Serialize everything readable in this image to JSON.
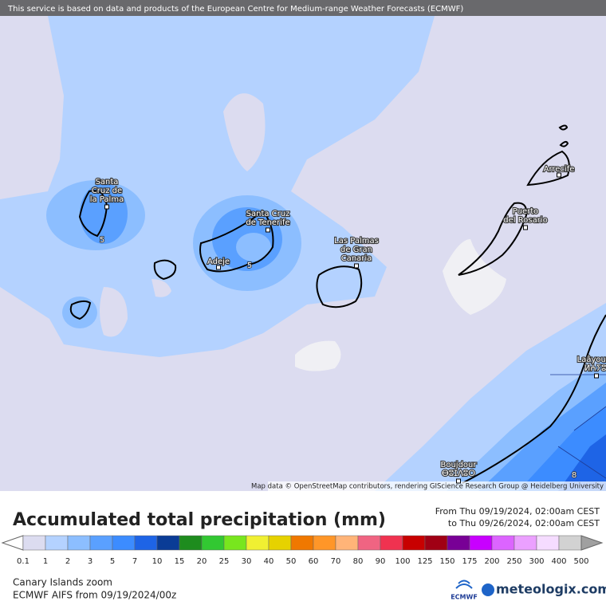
{
  "header": {
    "notice": "This service is based on data and products of the European Centre for Medium-range Weather Forecasts (ECMWF)"
  },
  "map": {
    "places": [
      {
        "lines": [
          "Santa",
          "Cruz de",
          "la Palma"
        ]
      },
      {
        "lines": [
          "Santa Cruz",
          "de Tenerife"
        ]
      },
      {
        "lines": [
          "Adeje"
        ]
      },
      {
        "lines": [
          "Las Palmas",
          "de Gran",
          "Canaria"
        ]
      },
      {
        "lines": [
          "Puerto",
          "del Rosario"
        ]
      },
      {
        "lines": [
          "Arrecife"
        ]
      },
      {
        "lines": [
          "Laâyoune",
          "ⵍⵄⵢⵓⵏ"
        ]
      },
      {
        "lines": [
          "Boujdour",
          "ⴱⵓⵊⴷⵓⵔ"
        ]
      }
    ],
    "contour_labels": [
      "5",
      "5",
      "8"
    ],
    "attribution": "Map data © OpenStreetMap contributors, rendering GIScience Research Group @ Heidelberg University"
  },
  "legend": {
    "title": "Accumulated total precipitation (mm)",
    "period": [
      "From Thu 09/19/2024, 02:00am CEST",
      "to Thu 09/26/2024, 02:00am CEST"
    ],
    "labels": [
      "0.1",
      "1",
      "2",
      "3",
      "5",
      "7",
      "10",
      "15",
      "20",
      "25",
      "30",
      "40",
      "50",
      "60",
      "70",
      "80",
      "90",
      "100",
      "125",
      "150",
      "175",
      "200",
      "250",
      "300",
      "400",
      "500"
    ],
    "colors": [
      "#dcdcf0",
      "#b4d2ff",
      "#8cbeff",
      "#5aa0ff",
      "#3c8cff",
      "#1e64e6",
      "#0a3c96",
      "#1e8c1e",
      "#32c832",
      "#78e61e",
      "#f0f032",
      "#e6d200",
      "#f07800",
      "#ff9628",
      "#ffb478",
      "#f06482",
      "#f03250",
      "#c80000",
      "#a00014",
      "#780096",
      "#c800ff",
      "#dc64ff",
      "#eba0ff",
      "#f5dcff",
      "#d2d2d2"
    ],
    "over_color": "#a0a0a0"
  },
  "footer": {
    "region": "Canary Islands zoom",
    "model": "ECMWF AIFS from  09/19/2024/00z",
    "logo_ecmwf": "ECMWF",
    "logo_site": "meteologix.com"
  }
}
